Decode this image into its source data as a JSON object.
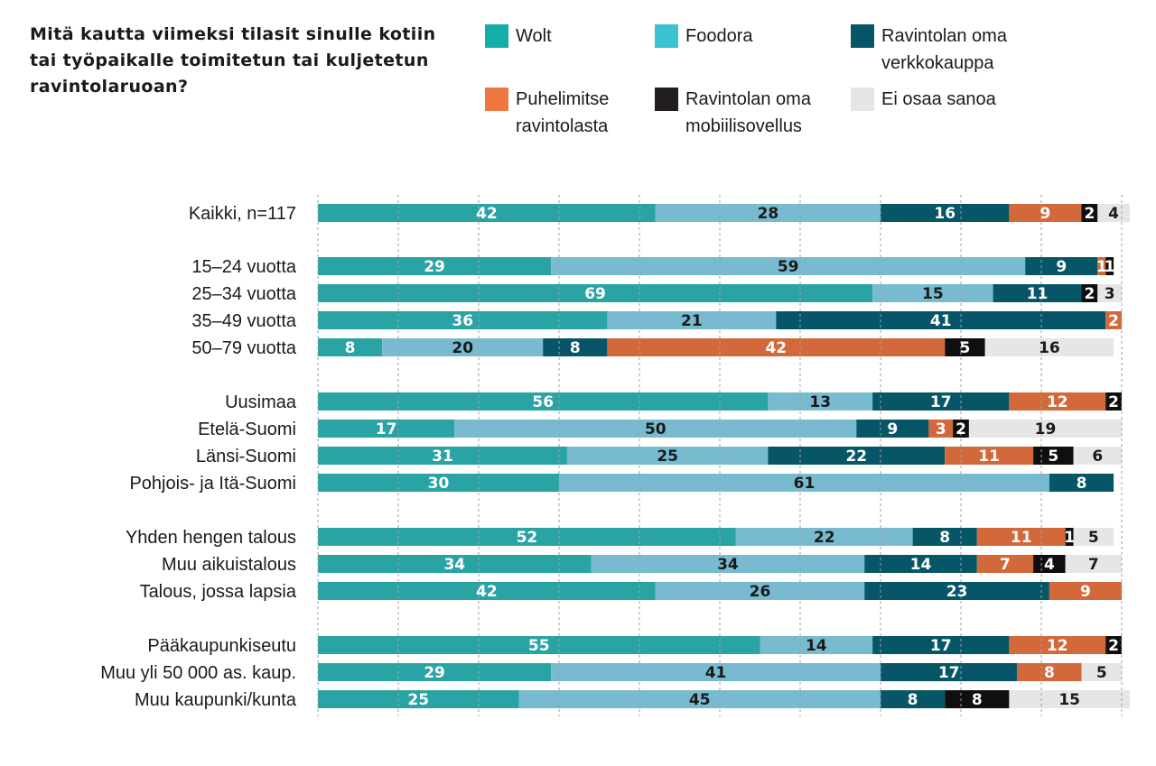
{
  "title": "Mitä kautta viimeksi tilasit sinulle kotiin tai työpaikalle toimitetun tai kuljetetun ravintolaruoan?",
  "colors": {
    "label_light": "#ffffff",
    "label_dark": "#1a1a1a",
    "grid": "#a0a0a0"
  },
  "chart_data": {
    "type": "bar",
    "orientation": "horizontal",
    "stacked": true,
    "xlim": [
      0,
      100
    ],
    "grid": true,
    "legend_position": "top",
    "series": [
      {
        "name": "Wolt",
        "color": "#2aa3a5",
        "legend_color": "#16aca9",
        "label_color": "#ffffff"
      },
      {
        "name": "Foodora",
        "color": "#78bbd0",
        "legend_color": "#3cc3d3",
        "label_color": "#1a1a1a"
      },
      {
        "name": "Ravintolan oma verkkokauppa",
        "color": "#075667",
        "legend_color": "#075667",
        "label_color": "#ffffff"
      },
      {
        "name": "Puhelimitse ravintolasta",
        "color": "#d3693a",
        "legend_color": "#ee7840",
        "label_color": "#ffffff"
      },
      {
        "name": "Ravintolan oma mobiilisovellus",
        "color": "#0f0f0f",
        "legend_color": "#221e1f",
        "label_color": "#ffffff"
      },
      {
        "name": "Ei osaa sanoa",
        "color": "#e6e6e6",
        "legend_color": "#e6e6e6",
        "label_color": "#1a1a1a"
      }
    ],
    "categories": [
      {
        "label": "Kaikki, n=117",
        "values": [
          42,
          28,
          16,
          9,
          2,
          4
        ]
      },
      {
        "label": "15–24 vuotta",
        "values": [
          29,
          59,
          9,
          1,
          1,
          0
        ]
      },
      {
        "label": "25–34 vuotta",
        "values": [
          69,
          15,
          11,
          0,
          2,
          3
        ]
      },
      {
        "label": "35–49 vuotta",
        "values": [
          36,
          21,
          41,
          2,
          0,
          0
        ]
      },
      {
        "label": "50–79 vuotta",
        "values": [
          8,
          20,
          8,
          42,
          5,
          16
        ]
      },
      {
        "label": "Uusimaa",
        "values": [
          56,
          13,
          17,
          12,
          2,
          0
        ]
      },
      {
        "label": "Etelä-Suomi",
        "values": [
          17,
          50,
          9,
          3,
          2,
          19
        ]
      },
      {
        "label": "Länsi-Suomi",
        "values": [
          31,
          25,
          22,
          11,
          5,
          6
        ]
      },
      {
        "label": "Pohjois- ja Itä-Suomi",
        "values": [
          30,
          61,
          8,
          0,
          0,
          0
        ]
      },
      {
        "label": "Yhden hengen talous",
        "values": [
          52,
          22,
          8,
          11,
          1,
          5
        ]
      },
      {
        "label": "Muu aikuistalous",
        "values": [
          34,
          34,
          14,
          7,
          4,
          7
        ]
      },
      {
        "label": "Talous, jossa lapsia",
        "values": [
          42,
          26,
          23,
          9,
          0,
          0
        ]
      },
      {
        "label": "Pääkaupunkiseutu",
        "values": [
          55,
          14,
          17,
          12,
          2,
          0
        ]
      },
      {
        "label": "Muu yli 50 000 as. kaup.",
        "values": [
          29,
          41,
          17,
          8,
          0,
          5
        ]
      },
      {
        "label": "Muu kaupunki/kunta",
        "values": [
          25,
          45,
          8,
          0,
          8,
          15
        ]
      }
    ]
  }
}
